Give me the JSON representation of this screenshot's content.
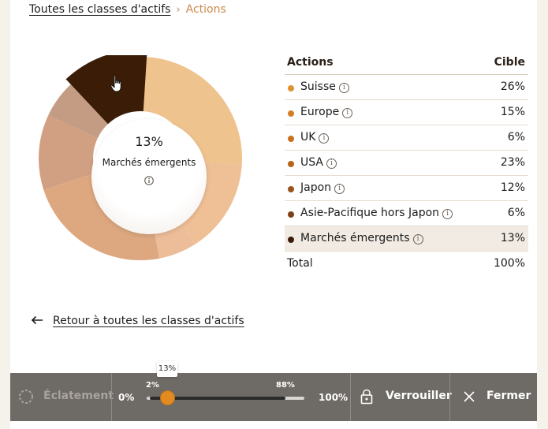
{
  "breadcrumb": {
    "parent": "Toutes les classes d'actifs",
    "separator": "›",
    "current": "Actions"
  },
  "donut": {
    "center_value": "13%",
    "center_label": "Marchés émergents",
    "segments": [
      {
        "name": "Suisse",
        "share": 0.26,
        "color": "#eec38e"
      },
      {
        "name": "Europe",
        "share": 0.15,
        "color": "#efbf96"
      },
      {
        "name": "UK",
        "share": 0.06,
        "color": "#ecbd98"
      },
      {
        "name": "USA",
        "share": 0.23,
        "color": "#dda880"
      },
      {
        "name": "Japon",
        "share": 0.12,
        "color": "#d1a083"
      },
      {
        "name": "Asie-Pacifique hors Japon",
        "share": 0.06,
        "color": "#c49c83"
      },
      {
        "name": "Marchés émergents",
        "share": 0.13,
        "color": "#3b1c07",
        "selected": true
      }
    ]
  },
  "table": {
    "col_name": "Actions",
    "col_target": "Cible",
    "rows": [
      {
        "label": "Suisse",
        "value": "26%",
        "dot_color": "#e0902e"
      },
      {
        "label": "Europe",
        "value": "15%",
        "dot_color": "#d47e24"
      },
      {
        "label": "UK",
        "value": "6%",
        "dot_color": "#c9701f"
      },
      {
        "label": "USA",
        "value": "23%",
        "dot_color": "#b8621c"
      },
      {
        "label": "Japon",
        "value": "12%",
        "dot_color": "#9c521a"
      },
      {
        "label": "Asie-Pacifique hors Japon",
        "value": "6%",
        "dot_color": "#7c4116"
      },
      {
        "label": "Marchés émergents",
        "value": "13%",
        "dot_color": "#3b1c07"
      }
    ],
    "total_label": "Total",
    "total_value": "100%"
  },
  "back_link": "Retour à toutes les classes d'actifs",
  "toolbar": {
    "burst_label": "Éclatement",
    "slider": {
      "min_label": "0%",
      "max_label": "100%",
      "range_low_label": "2%",
      "range_high_label": "88%",
      "range_low": 0.02,
      "range_high": 0.88,
      "value": 0.13,
      "tooltip": "13%"
    },
    "lock_label": "Verrouiller",
    "close_label": "Fermer"
  },
  "colors": {
    "accent": "#e08a1f",
    "toolbar_bg": "#6e6a66",
    "breadcrumb_current": "#c88a4b"
  },
  "icons": [
    "info-icon",
    "back-arrow-icon",
    "spinner-icon",
    "lock-icon",
    "close-icon",
    "hand-cursor-icon"
  ]
}
